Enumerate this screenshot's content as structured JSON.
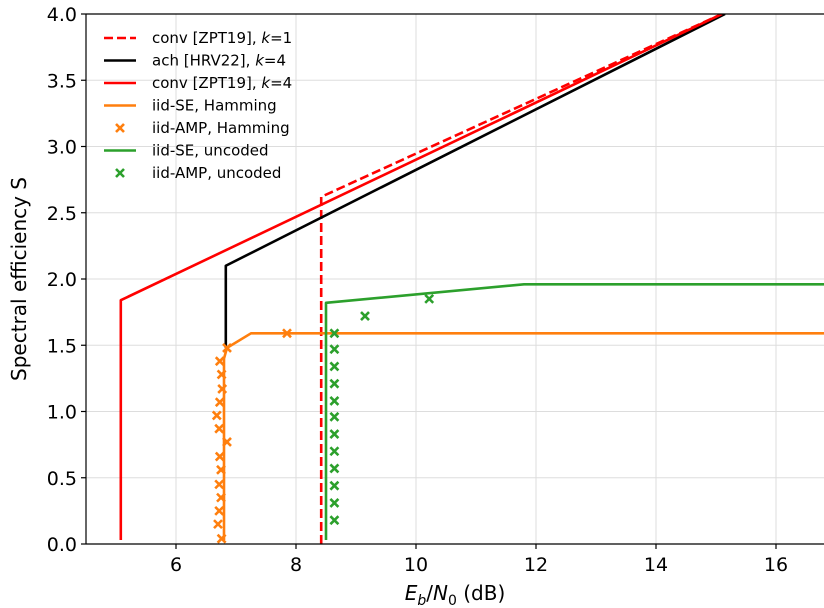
{
  "chart_data": {
    "type": "line",
    "xlabel": "E_b/N_0 (dB)",
    "ylabel": "Spectral efficiency S",
    "xlim": [
      4.5,
      16.8
    ],
    "ylim": [
      0.0,
      4.0
    ],
    "xticks": [
      6,
      8,
      10,
      12,
      14,
      16
    ],
    "yticks": [
      0.0,
      0.5,
      1.0,
      1.5,
      2.0,
      2.5,
      3.0,
      3.5,
      4.0
    ],
    "grid": true,
    "legend_position": "top-left",
    "series": [
      {
        "name": "conv [ZPT19], k=1",
        "legend_prefix": "conv [ZPT19], ",
        "legend_italic": "k",
        "legend_suffix": "=1",
        "color": "#ff0000",
        "style": "dashed",
        "x": [
          8.42,
          8.42,
          15.1
        ],
        "y": [
          0.0,
          2.62,
          4.0
        ]
      },
      {
        "name": "ach [HRV22], k=4",
        "legend_prefix": "ach [HRV22], ",
        "legend_italic": "k",
        "legend_suffix": "=4",
        "color": "#000000",
        "style": "solid",
        "x": [
          6.83,
          6.83,
          6.83,
          15.15
        ],
        "y": [
          1.48,
          2.1,
          2.1,
          4.0
        ]
      },
      {
        "name": "conv [ZPT19], k=4",
        "legend_prefix": "conv [ZPT19], ",
        "legend_italic": "k",
        "legend_suffix": "=4",
        "color": "#ff0000",
        "style": "solid",
        "x": [
          5.08,
          5.08,
          15.1
        ],
        "y": [
          0.03,
          1.84,
          4.0
        ]
      },
      {
        "name": "iid-SE, Hamming",
        "legend_prefix": "iid-SE, Hamming",
        "color": "#ff7f0e",
        "style": "solid",
        "x": [
          6.8,
          6.8,
          6.85,
          7.25,
          16.8
        ],
        "y": [
          0.03,
          1.4,
          1.48,
          1.59,
          1.59
        ]
      },
      {
        "name": "iid-AMP, Hamming",
        "legend_prefix": "iid-AMP, Hamming",
        "color": "#ff7f0e",
        "style": "marker",
        "x": [
          6.76,
          6.7,
          6.72,
          6.75,
          6.72,
          6.75,
          6.73,
          6.85,
          6.72,
          6.68,
          6.73,
          6.77,
          6.76,
          6.73,
          6.85,
          7.85
        ],
        "y": [
          0.04,
          0.15,
          0.25,
          0.35,
          0.45,
          0.56,
          0.66,
          0.77,
          0.87,
          0.97,
          1.07,
          1.17,
          1.28,
          1.38,
          1.48,
          1.59
        ]
      },
      {
        "name": "iid-SE, uncoded",
        "legend_prefix": "iid-SE, uncoded",
        "color": "#2ca02c",
        "style": "solid",
        "x": [
          8.5,
          8.5,
          8.5,
          11.8,
          16.8
        ],
        "y": [
          0.03,
          1.82,
          1.82,
          1.96,
          1.96
        ]
      },
      {
        "name": "iid-AMP, uncoded",
        "legend_prefix": "iid-AMP, uncoded",
        "color": "#2ca02c",
        "style": "marker",
        "x": [
          8.64,
          8.64,
          8.64,
          8.64,
          8.64,
          8.64,
          8.64,
          8.64,
          8.64,
          8.64,
          8.64,
          8.64,
          9.15,
          10.22
        ],
        "y": [
          0.18,
          0.31,
          0.44,
          0.57,
          0.7,
          0.83,
          0.96,
          1.08,
          1.21,
          1.34,
          1.47,
          1.59,
          1.72,
          1.85
        ]
      }
    ]
  }
}
